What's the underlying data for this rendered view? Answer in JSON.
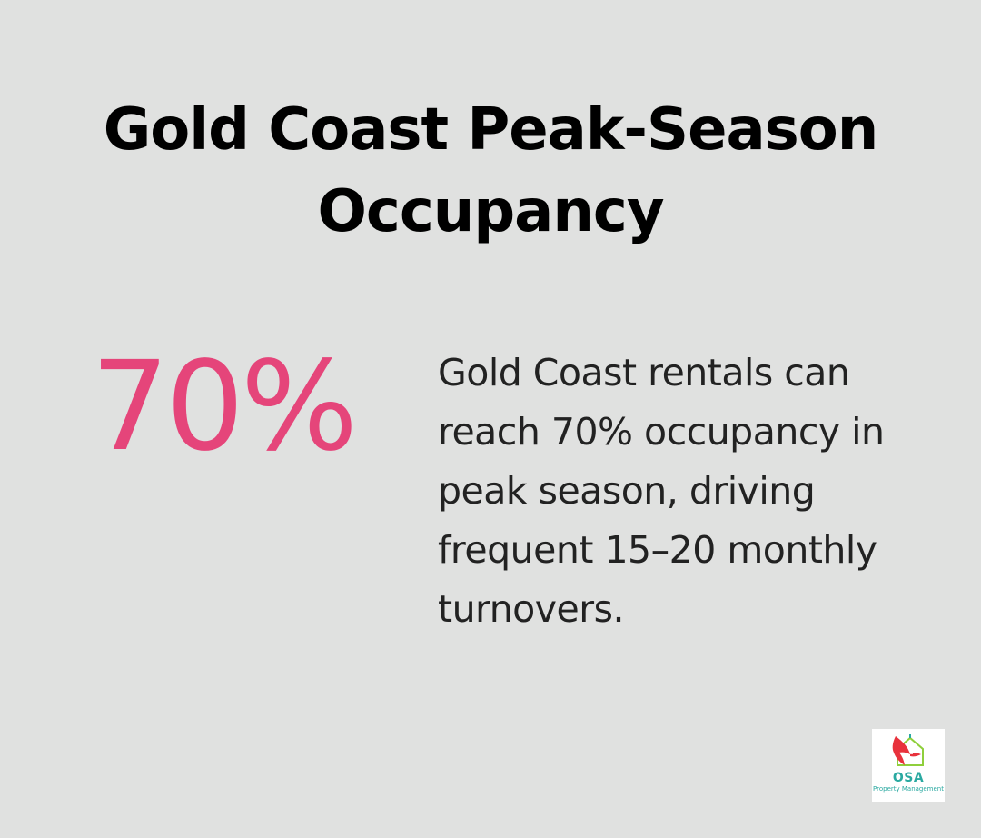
{
  "title": "Gold Coast Peak-Season Occupancy",
  "stat": {
    "value": "70%",
    "color": "#e5457a"
  },
  "description": "Gold Coast rentals can reach 70% occupancy in peak season, driving frequent 15–20 monthly turnovers.",
  "logo": {
    "name": "OSA",
    "subtitle": "Property Management",
    "icon": "bird-house-icon",
    "colors": {
      "bird": "#e8323c",
      "accent": "#2aa9a1",
      "house": "#8fcf3c"
    }
  }
}
